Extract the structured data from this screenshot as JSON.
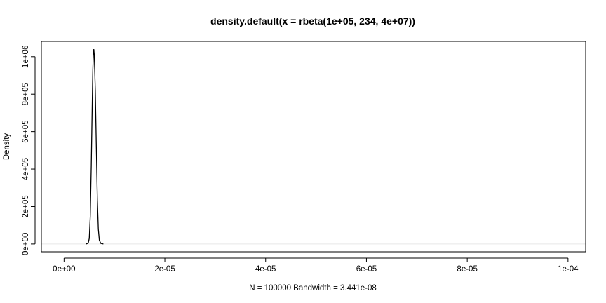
{
  "chart_data": {
    "type": "line",
    "title": "density.default(x = rbeta(1e+05, 234, 4e+07))",
    "xlabel": "N = 100000   Bandwidth = 3.441e-08",
    "ylabel": "Density",
    "xlim": [
      -4.5e-06,
      0.0001035
    ],
    "ylim": [
      -41600,
      1081600
    ],
    "x_ticks": [
      0,
      2e-05,
      4e-05,
      6e-05,
      8e-05,
      0.0001
    ],
    "x_tick_labels": [
      "0e+00",
      "2e-05",
      "4e-05",
      "6e-05",
      "8e-05",
      "1e-04"
    ],
    "y_ticks": [
      0,
      200000,
      400000,
      600000,
      800000,
      1000000
    ],
    "y_tick_labels": [
      "0e+00",
      "2e+05",
      "4e+05",
      "6e+05",
      "8e+05",
      "1e+06"
    ],
    "baseline": 0,
    "series": [
      {
        "color": "#000000",
        "x": [
          4.4e-06,
          4.8e-06,
          5e-06,
          5.2e-06,
          5.4e-06,
          5.6e-06,
          5.7e-06,
          5.8e-06,
          5.9e-06,
          6e-06,
          6.2e-06,
          6.4e-06,
          6.6e-06,
          6.8e-06,
          7e-06,
          7.3e-06,
          7.8e-06
        ],
        "y": [
          0,
          5000,
          30000,
          150000,
          420000,
          760000,
          920000,
          1010000,
          1040000,
          1010000,
          820000,
          520000,
          240000,
          80000,
          20000,
          3000,
          0
        ]
      }
    ],
    "grid": false,
    "legend": "none"
  }
}
